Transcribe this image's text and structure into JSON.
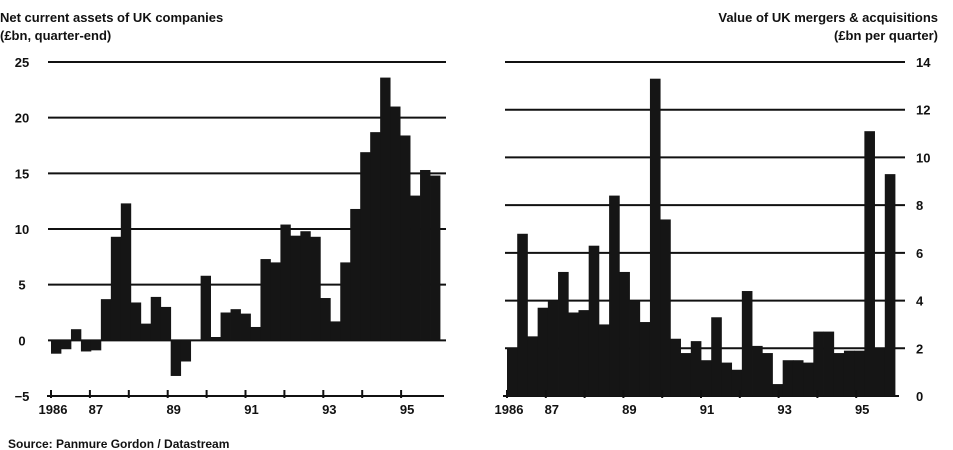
{
  "chart_data": [
    {
      "type": "bar",
      "title": "Net current assets of UK companies",
      "subtitle": "(£bn, quarter-end)",
      "xlabel": "",
      "ylabel": "",
      "ylim": [
        -5,
        25
      ],
      "yticks": [
        -5,
        0,
        5,
        10,
        15,
        20,
        25
      ],
      "xtick_labels": [
        "1986",
        "87",
        "89",
        "91",
        "93",
        "95"
      ],
      "x_start": 1986.0,
      "x_end": 1995.75,
      "grid": true,
      "values": [
        -1.2,
        -0.8,
        1.0,
        -1.0,
        -0.9,
        3.7,
        9.3,
        12.3,
        3.4,
        1.5,
        3.9,
        3.0,
        -3.2,
        -1.9,
        0.0,
        5.8,
        0.3,
        2.5,
        2.8,
        2.4,
        1.2,
        7.3,
        7.0,
        10.4,
        9.4,
        9.8,
        9.3,
        3.8,
        1.7,
        7.0,
        11.8,
        16.9,
        18.7,
        23.6,
        21.0,
        18.4,
        13.0,
        15.3,
        14.8
      ]
    },
    {
      "type": "bar",
      "title": "Value of UK mergers & acquisitions",
      "subtitle": "(£bn per quarter)",
      "xlabel": "",
      "ylabel": "",
      "ylim": [
        0,
        14
      ],
      "yticks": [
        0,
        2,
        4,
        6,
        8,
        10,
        12,
        14
      ],
      "xtick_labels": [
        "1986",
        "87",
        "89",
        "91",
        "93",
        "95"
      ],
      "x_start": 1986.0,
      "x_end": 1995.75,
      "grid": true,
      "values": [
        2.0,
        6.8,
        2.5,
        3.7,
        4.0,
        5.2,
        3.5,
        3.6,
        6.3,
        3.0,
        8.4,
        5.2,
        4.0,
        3.1,
        13.3,
        7.4,
        2.4,
        1.8,
        2.3,
        1.5,
        3.3,
        1.4,
        1.1,
        4.4,
        2.1,
        1.8,
        0.5,
        1.5,
        1.5,
        1.4,
        2.7,
        2.7,
        1.8,
        1.9,
        1.9,
        11.1,
        2.0,
        9.3
      ]
    }
  ],
  "source": "Source: Panmure Gordon / Datastream"
}
